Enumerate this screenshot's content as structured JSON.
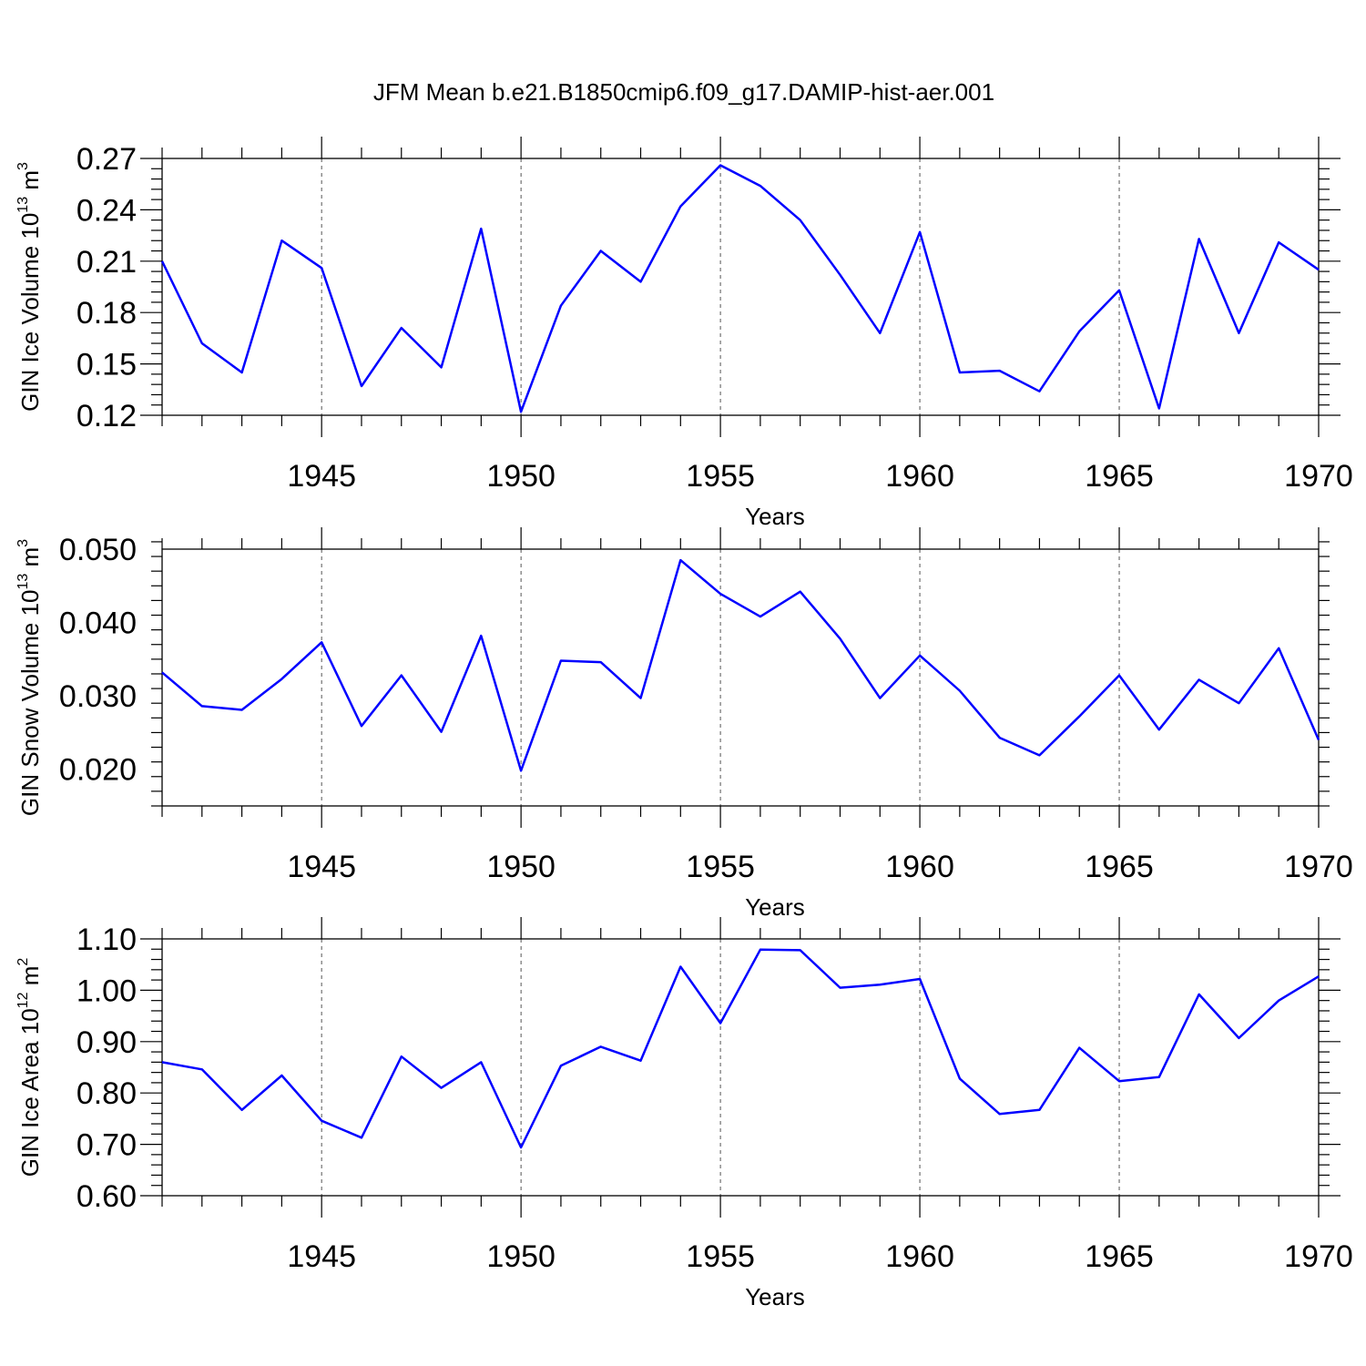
{
  "title": "JFM Mean b.e21.B1850cmip6.f09_g17.DAMIP-hist-aer.001",
  "colors": {
    "line": "#0000ff",
    "axis": "#000000",
    "grid": "#555555"
  },
  "chart_data": [
    {
      "type": "line",
      "xlabel": "Years",
      "ylabel": {
        "text": "GIN Ice Volume 10",
        "exp": "13",
        "unit": " m",
        "unit_exp": "3"
      },
      "x": [
        1941,
        1942,
        1943,
        1944,
        1945,
        1946,
        1947,
        1948,
        1949,
        1950,
        1951,
        1952,
        1953,
        1954,
        1955,
        1956,
        1957,
        1958,
        1959,
        1960,
        1961,
        1962,
        1963,
        1964,
        1965,
        1966,
        1967,
        1968,
        1969,
        1970
      ],
      "values": [
        0.21,
        0.162,
        0.145,
        0.222,
        0.206,
        0.137,
        0.171,
        0.148,
        0.229,
        0.122,
        0.184,
        0.216,
        0.198,
        0.242,
        0.266,
        0.254,
        0.234,
        0.202,
        0.168,
        0.227,
        0.145,
        0.146,
        0.134,
        0.169,
        0.193,
        0.124,
        0.223,
        0.168,
        0.221,
        0.205
      ],
      "xlim": [
        1941,
        1970
      ],
      "ylim": [
        0.12,
        0.27
      ],
      "xticks": [
        "1945",
        "1950",
        "1955",
        "1960",
        "1965",
        "1970"
      ],
      "yticks": [
        "0.12",
        "0.15",
        "0.18",
        "0.21",
        "0.24",
        "0.27"
      ],
      "grid": "vertical dashed at major x ticks"
    },
    {
      "type": "line",
      "xlabel": "Years",
      "ylabel": {
        "text": "GIN Snow Volume 10",
        "exp": "13",
        "unit": " m",
        "unit_exp": "3"
      },
      "x": [
        1941,
        1942,
        1943,
        1944,
        1945,
        1946,
        1947,
        1948,
        1949,
        1950,
        1951,
        1952,
        1953,
        1954,
        1955,
        1956,
        1957,
        1958,
        1959,
        1960,
        1961,
        1962,
        1963,
        1964,
        1965,
        1966,
        1967,
        1968,
        1969,
        1970
      ],
      "values": [
        0.0332,
        0.0286,
        0.0281,
        0.0323,
        0.0373,
        0.0259,
        0.0328,
        0.0251,
        0.0382,
        0.0198,
        0.0348,
        0.0346,
        0.0297,
        0.0485,
        0.0439,
        0.0408,
        0.0442,
        0.0378,
        0.0297,
        0.0355,
        0.0307,
        0.0243,
        0.0219,
        0.0272,
        0.0328,
        0.0254,
        0.0322,
        0.029,
        0.0365,
        0.024
      ],
      "xlim": [
        1941,
        1970
      ],
      "ylim": [
        0.015,
        0.05
      ],
      "xticks": [
        "1945",
        "1950",
        "1955",
        "1960",
        "1965",
        "1970"
      ],
      "yticks": [
        "0.020",
        "0.030",
        "0.040",
        "0.050"
      ],
      "grid": "vertical dashed at major x ticks"
    },
    {
      "type": "line",
      "xlabel": "Years",
      "ylabel": {
        "text": "GIN Ice Area 10",
        "exp": "12",
        "unit": " m",
        "unit_exp": "2"
      },
      "x": [
        1941,
        1942,
        1943,
        1944,
        1945,
        1946,
        1947,
        1948,
        1949,
        1950,
        1951,
        1952,
        1953,
        1954,
        1955,
        1956,
        1957,
        1958,
        1959,
        1960,
        1961,
        1962,
        1963,
        1964,
        1965,
        1966,
        1967,
        1968,
        1969,
        1970
      ],
      "values": [
        0.86,
        0.846,
        0.767,
        0.834,
        0.746,
        0.713,
        0.871,
        0.81,
        0.86,
        0.694,
        0.853,
        0.89,
        0.863,
        1.046,
        0.936,
        1.079,
        1.078,
        1.005,
        1.011,
        1.022,
        0.828,
        0.759,
        0.767,
        0.888,
        0.823,
        0.831,
        0.992,
        0.907,
        0.98,
        1.027
      ],
      "xlim": [
        1941,
        1970
      ],
      "ylim": [
        0.6,
        1.1
      ],
      "xticks": [
        "1945",
        "1950",
        "1955",
        "1960",
        "1965",
        "1970"
      ],
      "yticks": [
        "0.60",
        "0.70",
        "0.80",
        "0.90",
        "1.00",
        "1.10"
      ],
      "grid": "vertical dashed at major x ticks"
    }
  ]
}
